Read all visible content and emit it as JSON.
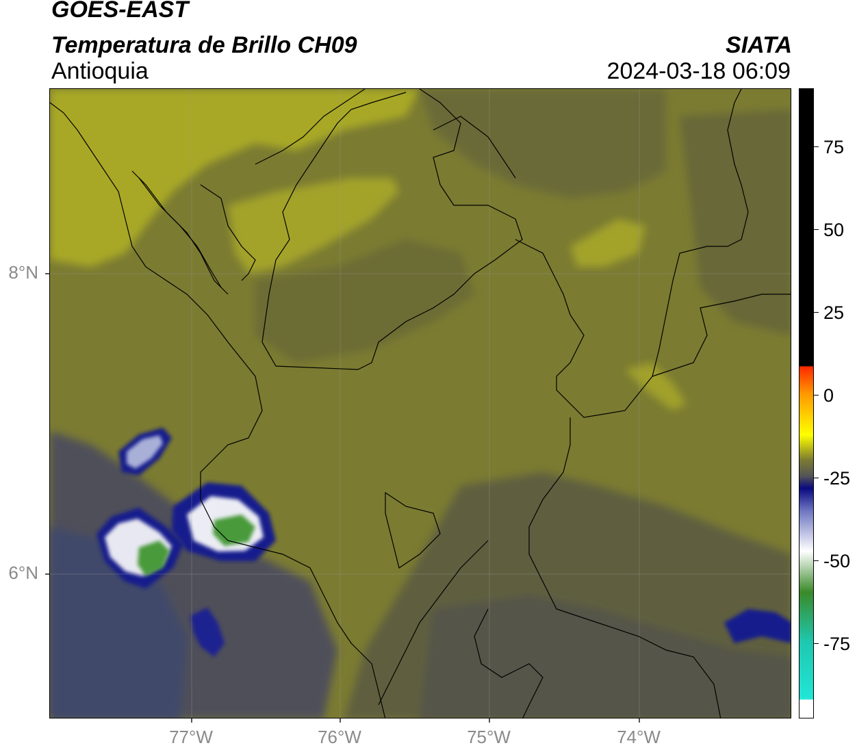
{
  "header": {
    "satellite": "GOES-EAST",
    "product": "Temperatura de Brillo CH09",
    "region": "Antioquia",
    "agency": "SIATA",
    "timestamp": "2024-03-18 06:09"
  },
  "axes": {
    "lat_labels": [
      "8°N",
      "6°N"
    ],
    "lon_labels": [
      "77°W",
      "76°W",
      "75°W",
      "74°W"
    ]
  },
  "colorbar": {
    "labels": [
      "75",
      "50",
      "25",
      "0",
      "-25",
      "-50",
      "-75"
    ],
    "colors": {
      "warm_black": "#000000",
      "red": "#ff2a00",
      "orange": "#ff9900",
      "yellow": "#ffff00",
      "olive": "#7b7b32",
      "gray": "#555555",
      "navy": "#0a0a80",
      "white": "#ffffff",
      "green": "#3a8a2a",
      "cyan": "#22e6d6"
    }
  }
}
